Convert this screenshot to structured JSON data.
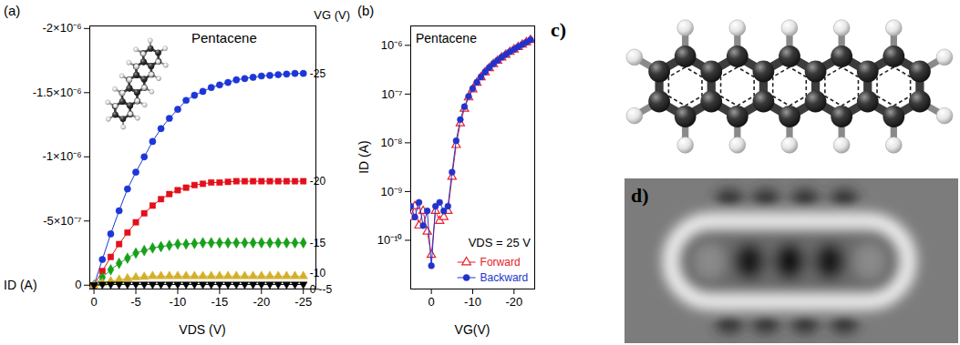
{
  "chart_data": [
    {
      "type": "line",
      "panel_label": "(a)",
      "annotations": [
        "Pentacene"
      ],
      "legend_title": "VG (V)",
      "xlabel": "VDS (V)",
      "ylabel": "ID (A)",
      "x": [
        0,
        -1,
        -2,
        -3,
        -4,
        -5,
        -6,
        -7,
        -8,
        -9,
        -10,
        -11,
        -12,
        -13,
        -14,
        -15,
        -16,
        -17,
        -18,
        -19,
        -20,
        -21,
        -22,
        -23,
        -24,
        -25
      ],
      "xlim": [
        0.5,
        -26.5
      ],
      "xticks": [
        0,
        -5,
        -10,
        -15,
        -20,
        -25
      ],
      "ylim": [
        3e-08,
        -2.02e-06
      ],
      "yticks": [
        0,
        {
          "value": -5e-07,
          "label": "-5×10⁻⁷"
        },
        {
          "value": -1e-06,
          "label": "-1×10⁻⁶"
        },
        {
          "value": -1.5e-06,
          "label": "-1.5×10⁻⁶"
        },
        {
          "value": -2e-06,
          "label": "-2×10⁻⁶"
        }
      ],
      "series": [
        {
          "name": "-25",
          "color": "#1c37d6",
          "marker": "circle",
          "line_style": "solid",
          "values": [
            0,
            -2e-07,
            -4e-07,
            -5.8e-07,
            -7.5e-07,
            -8.8e-07,
            -1e-06,
            -1.12e-06,
            -1.22e-06,
            -1.3e-06,
            -1.37e-06,
            -1.44e-06,
            -1.48e-06,
            -1.51e-06,
            -1.54e-06,
            -1.56e-06,
            -1.58e-06,
            -1.6e-06,
            -1.61e-06,
            -1.62e-06,
            -1.63e-06,
            -1.635e-06,
            -1.64e-06,
            -1.645e-06,
            -1.65e-06,
            -1.65e-06
          ]
        },
        {
          "name": "-20",
          "color": "#e3101b",
          "marker": "square",
          "line_style": "solid",
          "values": [
            0,
            -1.1e-07,
            -2.2e-07,
            -3.2e-07,
            -4.1e-07,
            -4.9e-07,
            -5.6e-07,
            -6.2e-07,
            -6.7e-07,
            -7.1e-07,
            -7.4e-07,
            -7.6e-07,
            -7.8e-07,
            -7.9e-07,
            -8e-07,
            -8e-07,
            -8.05e-07,
            -8.1e-07,
            -8.1e-07,
            -8.1e-07,
            -8.1e-07,
            -8.1e-07,
            -8.1e-07,
            -8.1e-07,
            -8.1e-07,
            -8.1e-07
          ]
        },
        {
          "name": "-15",
          "color": "#17a11a",
          "marker": "diamond",
          "line_style": "solid",
          "values": [
            0,
            -6e-08,
            -1.2e-07,
            -1.7e-07,
            -2.1e-07,
            -2.5e-07,
            -2.7e-07,
            -2.9e-07,
            -3e-07,
            -3.1e-07,
            -3.2e-07,
            -3.2e-07,
            -3.25e-07,
            -3.3e-07,
            -3.3e-07,
            -3.3e-07,
            -3.3e-07,
            -3.3e-07,
            -3.3e-07,
            -3.3e-07,
            -3.3e-07,
            -3.3e-07,
            -3.3e-07,
            -3.3e-07,
            -3.3e-07,
            -3.3e-07
          ]
        },
        {
          "name": "-10",
          "color": "#d4af2a",
          "marker": "triangle",
          "line_style": "solid",
          "values": [
            0,
            -1.5e-08,
            -3e-08,
            -4.2e-08,
            -5.2e-08,
            -6e-08,
            -6.5e-08,
            -7e-08,
            -7e-08,
            -7e-08,
            -7e-08,
            -7e-08,
            -7e-08,
            -7e-08,
            -7e-08,
            -7e-08,
            -7e-08,
            -7e-08,
            -7e-08,
            -7e-08,
            -7e-08,
            -7e-08,
            -7e-08,
            -7e-08,
            -7e-08,
            -7e-08
          ]
        },
        {
          "name": "0~-5",
          "color": "#000000",
          "marker": "triangle-down",
          "line_style": "solid",
          "values": [
            0,
            -5e-09,
            -5e-09,
            -5e-09,
            -5e-09,
            -5e-09,
            -5e-09,
            -5e-09,
            -5e-09,
            -5e-09,
            -5e-09,
            -5e-09,
            -5e-09,
            -5e-09,
            -5e-09,
            -5e-09,
            -5e-09,
            -5e-09,
            -5e-09,
            -5e-09,
            -5e-09,
            -5e-09,
            -5e-09,
            -5e-09,
            -5e-09,
            -5e-09
          ]
        }
      ]
    },
    {
      "type": "line",
      "panel_label": "(b)",
      "annotations": [
        "Pentacene",
        "VDS = 25 V"
      ],
      "xlabel": "VG(V)",
      "ylabel": "ID (A)",
      "log": "y",
      "legend": "bottom-right",
      "x": [
        5,
        4,
        3,
        2,
        1,
        0,
        -1,
        -2,
        -3,
        -4,
        -5,
        -6,
        -7,
        -8,
        -9,
        -10,
        -11,
        -12,
        -13,
        -14,
        -15,
        -16,
        -17,
        -18,
        -19,
        -20,
        -21,
        -22,
        -23,
        -24
      ],
      "xlim": [
        5,
        -25
      ],
      "xticks": [
        0,
        -10,
        -20
      ],
      "ylim": [
        1e-11,
        2.5e-06
      ],
      "yticks": [
        {
          "value": 1e-10,
          "label": "10⁻¹⁰"
        },
        {
          "value": 1e-09,
          "label": "10⁻⁹"
        },
        {
          "value": 1e-08,
          "label": "10⁻⁸"
        },
        {
          "value": 1e-07,
          "label": "10⁻⁷"
        },
        {
          "value": 1e-06,
          "label": "10⁻⁶"
        }
      ],
      "series": [
        {
          "name": "Forward",
          "color": "#e8202a",
          "marker": "open-triangle",
          "line_style": "solid",
          "values": [
            3e-10,
            5e-10,
            2e-10,
            4e-10,
            1.5e-10,
            5e-11,
            4e-10,
            2.5e-10,
            3e-10,
            4e-10,
            2e-09,
            9e-09,
            2.5e-08,
            5e-08,
            8.5e-08,
            1.25e-07,
            1.7e-07,
            2.2e-07,
            2.8e-07,
            3.4e-07,
            4.1e-07,
            4.8e-07,
            5.6e-07,
            6.4e-07,
            7.3e-07,
            8.2e-07,
            9.2e-07,
            1.03e-06,
            1.15e-06,
            1.28e-06
          ]
        },
        {
          "name": "Backward",
          "color": "#2233cc",
          "marker": "circle",
          "line_style": "solid",
          "values": [
            5e-10,
            3e-10,
            6e-10,
            2e-10,
            4e-10,
            3e-11,
            5e-10,
            6e-10,
            4e-10,
            5e-10,
            2.5e-09,
            1.1e-08,
            3e-08,
            5.5e-08,
            9e-08,
            1.3e-07,
            1.75e-07,
            2.25e-07,
            2.85e-07,
            3.5e-07,
            4.2e-07,
            4.9e-07,
            5.7e-07,
            6.5e-07,
            7.4e-07,
            8.3e-07,
            9.3e-07,
            1.04e-06,
            1.16e-06,
            1.3e-06
          ]
        }
      ]
    }
  ],
  "images": [
    {
      "label": "c)"
    },
    {
      "label": "d)"
    }
  ]
}
